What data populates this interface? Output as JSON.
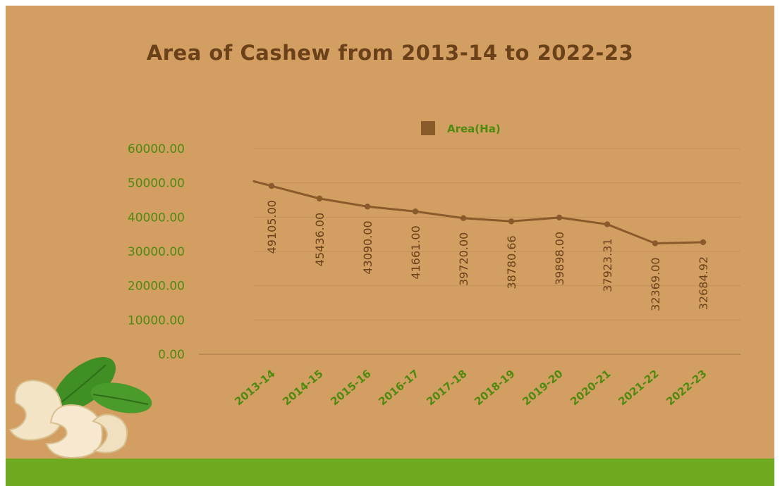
{
  "chart_data": {
    "type": "line",
    "title": "Area of Cashew from 2013-14  to 2022-23",
    "xlabel": "",
    "ylabel": "",
    "categories": [
      "2013-14",
      "2014-15",
      "2015-16",
      "2016-17",
      "2017-18",
      "2018-19",
      "2019-20",
      "2020-21",
      "2021-22",
      "2022-23"
    ],
    "series": [
      {
        "name": "Area(Ha)",
        "values": [
          49105.0,
          45436.0,
          43090.0,
          41661.0,
          39720.0,
          38780.66,
          39898.0,
          37923.31,
          32369.0,
          32684.92
        ],
        "labels": [
          "49105.00",
          "45436.00",
          "43090.00",
          "41661.00",
          "39720.00",
          "38780.66",
          "39898.00",
          "37923.31",
          "32369.00",
          "32684.92"
        ],
        "color": "#8a5a2b"
      }
    ],
    "y_tick_labels": [
      "0.00",
      "10000.00",
      "20000.00",
      "30000.00",
      "40000.00",
      "50000.00",
      "60000.00"
    ],
    "ylim": [
      0,
      60000
    ],
    "grid": true,
    "legend": "top-center"
  },
  "colors": {
    "background": "#d39e62",
    "footer_band": "#6fa91f",
    "title": "#6b4119",
    "tick_text": "#4f8a10",
    "line": "#8a5a2b",
    "grid": "#c4905a"
  }
}
